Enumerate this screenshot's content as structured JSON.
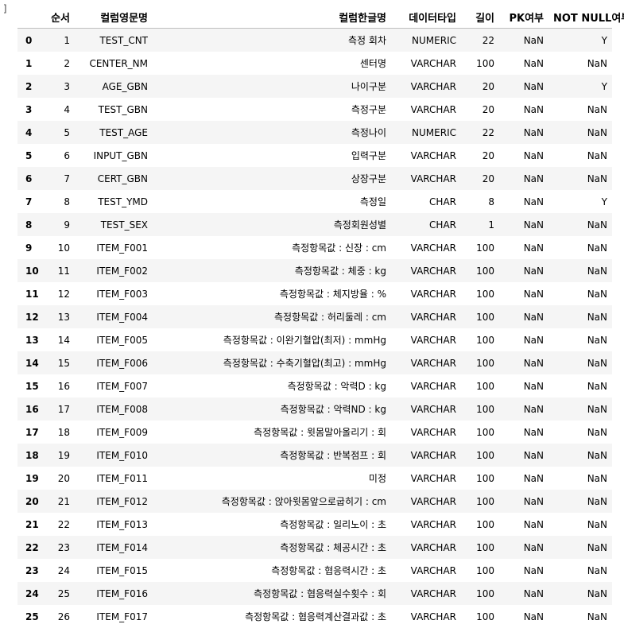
{
  "prompt": "]",
  "headers": [
    "",
    "순서",
    "컬럼영문명",
    "컬럼한글명",
    "데이터타입",
    "길이",
    "PK여부",
    "NOT NULL여부"
  ],
  "rows": [
    {
      "idx": "0",
      "no": "1",
      "eng": "TEST_CNT",
      "kor": "측정 회차",
      "type": "NUMERIC",
      "len": "22",
      "pk": "NaN",
      "nn": "Y"
    },
    {
      "idx": "1",
      "no": "2",
      "eng": "CENTER_NM",
      "kor": "센터명",
      "type": "VARCHAR",
      "len": "100",
      "pk": "NaN",
      "nn": "NaN"
    },
    {
      "idx": "2",
      "no": "3",
      "eng": "AGE_GBN",
      "kor": "나이구분",
      "type": "VARCHAR",
      "len": "20",
      "pk": "NaN",
      "nn": "Y"
    },
    {
      "idx": "3",
      "no": "4",
      "eng": "TEST_GBN",
      "kor": "측정구분",
      "type": "VARCHAR",
      "len": "20",
      "pk": "NaN",
      "nn": "NaN"
    },
    {
      "idx": "4",
      "no": "5",
      "eng": "TEST_AGE",
      "kor": "측정나이",
      "type": "NUMERIC",
      "len": "22",
      "pk": "NaN",
      "nn": "NaN"
    },
    {
      "idx": "5",
      "no": "6",
      "eng": "INPUT_GBN",
      "kor": "입력구분",
      "type": "VARCHAR",
      "len": "20",
      "pk": "NaN",
      "nn": "NaN"
    },
    {
      "idx": "6",
      "no": "7",
      "eng": "CERT_GBN",
      "kor": "상장구분",
      "type": "VARCHAR",
      "len": "20",
      "pk": "NaN",
      "nn": "NaN"
    },
    {
      "idx": "7",
      "no": "8",
      "eng": "TEST_YMD",
      "kor": "측정일",
      "type": "CHAR",
      "len": "8",
      "pk": "NaN",
      "nn": "Y"
    },
    {
      "idx": "8",
      "no": "9",
      "eng": "TEST_SEX",
      "kor": "측정회원성별",
      "type": "CHAR",
      "len": "1",
      "pk": "NaN",
      "nn": "NaN"
    },
    {
      "idx": "9",
      "no": "10",
      "eng": "ITEM_F001",
      "kor": "측정항목값 : 신장 : cm",
      "type": "VARCHAR",
      "len": "100",
      "pk": "NaN",
      "nn": "NaN"
    },
    {
      "idx": "10",
      "no": "11",
      "eng": "ITEM_F002",
      "kor": "측정항목값 : 체중 : kg",
      "type": "VARCHAR",
      "len": "100",
      "pk": "NaN",
      "nn": "NaN"
    },
    {
      "idx": "11",
      "no": "12",
      "eng": "ITEM_F003",
      "kor": "측정항목값 : 체지방율 : %",
      "type": "VARCHAR",
      "len": "100",
      "pk": "NaN",
      "nn": "NaN"
    },
    {
      "idx": "12",
      "no": "13",
      "eng": "ITEM_F004",
      "kor": "측정항목값 : 허리둘레 : cm",
      "type": "VARCHAR",
      "len": "100",
      "pk": "NaN",
      "nn": "NaN"
    },
    {
      "idx": "13",
      "no": "14",
      "eng": "ITEM_F005",
      "kor": "측정항목값 : 이완기혈압(최저) : mmHg",
      "type": "VARCHAR",
      "len": "100",
      "pk": "NaN",
      "nn": "NaN"
    },
    {
      "idx": "14",
      "no": "15",
      "eng": "ITEM_F006",
      "kor": "측정항목값 : 수축기혈압(최고) : mmHg",
      "type": "VARCHAR",
      "len": "100",
      "pk": "NaN",
      "nn": "NaN"
    },
    {
      "idx": "15",
      "no": "16",
      "eng": "ITEM_F007",
      "kor": "측정항목값 : 악력D : kg",
      "type": "VARCHAR",
      "len": "100",
      "pk": "NaN",
      "nn": "NaN"
    },
    {
      "idx": "16",
      "no": "17",
      "eng": "ITEM_F008",
      "kor": "측정항목값 : 악력ND : kg",
      "type": "VARCHAR",
      "len": "100",
      "pk": "NaN",
      "nn": "NaN"
    },
    {
      "idx": "17",
      "no": "18",
      "eng": "ITEM_F009",
      "kor": "측정항목값 : 윗몸말아올리기 : 회",
      "type": "VARCHAR",
      "len": "100",
      "pk": "NaN",
      "nn": "NaN"
    },
    {
      "idx": "18",
      "no": "19",
      "eng": "ITEM_F010",
      "kor": "측정항목값 : 반복점프 : 회",
      "type": "VARCHAR",
      "len": "100",
      "pk": "NaN",
      "nn": "NaN"
    },
    {
      "idx": "19",
      "no": "20",
      "eng": "ITEM_F011",
      "kor": "미정",
      "type": "VARCHAR",
      "len": "100",
      "pk": "NaN",
      "nn": "NaN"
    },
    {
      "idx": "20",
      "no": "21",
      "eng": "ITEM_F012",
      "kor": "측정항목값 : 앉아윗몸앞으로굽히기 : cm",
      "type": "VARCHAR",
      "len": "100",
      "pk": "NaN",
      "nn": "NaN"
    },
    {
      "idx": "21",
      "no": "22",
      "eng": "ITEM_F013",
      "kor": "측정항목값 : 일리노이 : 초",
      "type": "VARCHAR",
      "len": "100",
      "pk": "NaN",
      "nn": "NaN"
    },
    {
      "idx": "22",
      "no": "23",
      "eng": "ITEM_F014",
      "kor": "측정항목값 : 체공시간 : 초",
      "type": "VARCHAR",
      "len": "100",
      "pk": "NaN",
      "nn": "NaN"
    },
    {
      "idx": "23",
      "no": "24",
      "eng": "ITEM_F015",
      "kor": "측정항목값 : 협응력시간 : 초",
      "type": "VARCHAR",
      "len": "100",
      "pk": "NaN",
      "nn": "NaN"
    },
    {
      "idx": "24",
      "no": "25",
      "eng": "ITEM_F016",
      "kor": "측정항목값 : 협응력실수횟수 : 회",
      "type": "VARCHAR",
      "len": "100",
      "pk": "NaN",
      "nn": "NaN"
    },
    {
      "idx": "25",
      "no": "26",
      "eng": "ITEM_F017",
      "kor": "측정항목값 : 협응력계산결과값 : 초",
      "type": "VARCHAR",
      "len": "100",
      "pk": "NaN",
      "nn": "NaN"
    }
  ]
}
